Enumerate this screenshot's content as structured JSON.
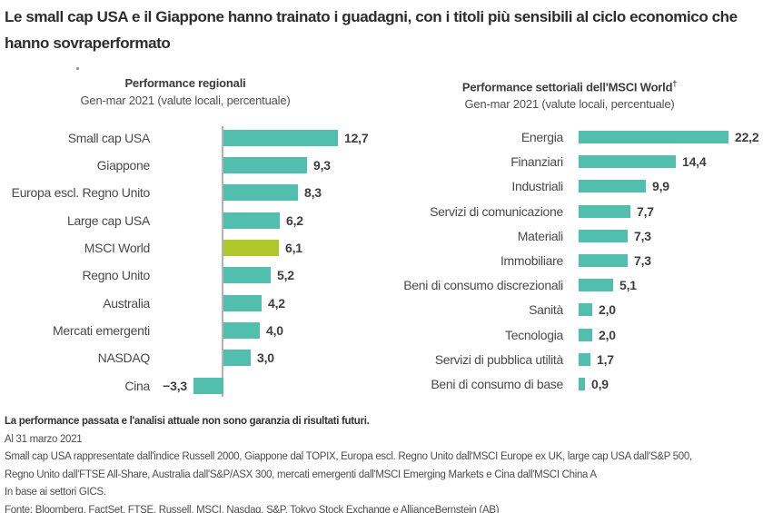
{
  "title": "Le small cap USA e il Giappone hanno trainato i guadagni, con i titoli più sensibili al ciclo economico che hanno sovraperformato",
  "chart_data": [
    {
      "type": "bar",
      "orientation": "horizontal",
      "title": "Performance regionali",
      "subtitle": "Gen-mar 2021 (valute locali, percentuale)",
      "categories": [
        "Small cap USA",
        "Giappone",
        "Europa escl. Regno Unito",
        "Large cap USA",
        "MSCI World",
        "Regno Unito",
        "Australia",
        "Mercati emergenti",
        "NASDAQ",
        "Cina"
      ],
      "values": [
        12.7,
        9.3,
        8.3,
        6.2,
        6.1,
        5.2,
        4.2,
        4.0,
        3.0,
        -3.3
      ],
      "value_labels": [
        "12,7",
        "9,3",
        "8,3",
        "6,2",
        "6,1",
        "5,2",
        "4,2",
        "4,0",
        "3,0",
        "−3,3"
      ],
      "highlight_category": "MSCI World",
      "bar_color": "#52BFAE",
      "highlight_color": "#B0C72A",
      "xlim": [
        -3.3,
        12.7
      ],
      "zero_line": true,
      "grid": false,
      "legend": false,
      "value_label_position": "bar-end"
    },
    {
      "type": "bar",
      "orientation": "horizontal",
      "title": "Performance settoriali dell'MSCI World",
      "title_footnote_mark": "†",
      "subtitle": "Gen-mar 2021 (valute locali, percentuale)",
      "categories": [
        "Energia",
        "Finanziari",
        "Industriali",
        "Servizi di comunicazione",
        "Materiali",
        "Immobiliare",
        "Beni di consumo discrezionali",
        "Sanità",
        "Tecnologia",
        "Servizi di pubblica utilità",
        "Beni di consumo di base"
      ],
      "values": [
        22.2,
        14.4,
        9.9,
        7.7,
        7.3,
        7.3,
        5.1,
        2.0,
        2.0,
        1.7,
        0.9
      ],
      "value_labels": [
        "22,2",
        "14,4",
        "9,9",
        "7,7",
        "7,3",
        "7,3",
        "5,1",
        "2,0",
        "2,0",
        "1,7",
        "0,9"
      ],
      "bar_color": "#52BFAE",
      "xlim": [
        0,
        22.2
      ],
      "zero_line": false,
      "grid": false,
      "legend": false,
      "value_label_position": "bar-end"
    }
  ],
  "footnotes": {
    "disclaimer": "La performance passata e l'analisi attuale non sono garanzia di risultati futuri.",
    "lines": [
      "Al 31 marzo 2021",
      "Small cap USA rappresentate dall'indice Russell 2000, Giappone dal TOPIX, Europa escl. Regno Unito dall'MSCI Europe ex UK, large cap USA dall'S&P 500,",
      "Regno Unito dall'FTSE All-Share, Australia dall'S&P/ASX 300, mercati emergenti dall'MSCI Emerging Markets e Cina dall'MSCI China A",
      "In base ai settori GICS.",
      "Fonte: Bloomberg, FactSet, FTSE, Russell, MSCI, Nasdaq, S&P, Tokyo Stock Exchange e AllianceBernstein (AB)"
    ]
  }
}
